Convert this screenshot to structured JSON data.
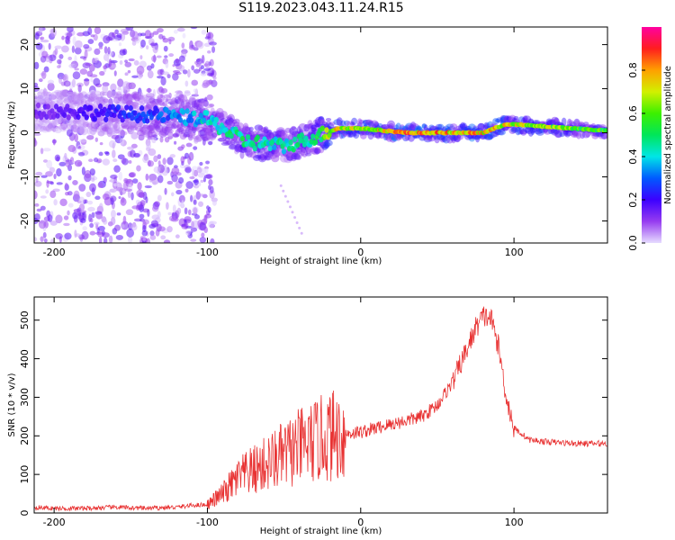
{
  "title": "S119.2023.043.11.24.R15",
  "colors": {
    "snr_line": "#e83232",
    "background": "#ffffff",
    "axes": "#000000"
  },
  "chart_data": [
    {
      "type": "heatmap",
      "title": "",
      "xlabel": "Height of straight line (km)",
      "ylabel": "Frequency (Hz)",
      "xlim": [
        -213,
        161
      ],
      "ylim": [
        -25,
        24
      ],
      "xticks": [
        -200,
        -100,
        0,
        100
      ],
      "yticks": [
        20,
        10,
        0,
        -10,
        -20
      ],
      "colorbar": {
        "label": "Normalized spectral amplitude",
        "range": [
          0,
          1
        ],
        "ticks": [
          "0.0",
          "0.2",
          "0.4",
          "0.6",
          "0.8"
        ],
        "colormap": "rainbow (purple-blue-cyan-green-yellow-red-magenta)"
      },
      "ridge": [
        {
          "x": -200,
          "freq": 5,
          "amp": 0.15
        },
        {
          "x": -130,
          "freq": 4,
          "amp": 0.3
        },
        {
          "x": -100,
          "freq": 3,
          "amp": 0.45
        },
        {
          "x": -75,
          "freq": -2,
          "amp": 0.5
        },
        {
          "x": -50,
          "freq": -3,
          "amp": 0.45
        },
        {
          "x": -30,
          "freq": -1,
          "amp": 0.5
        },
        {
          "x": -15,
          "freq": 1,
          "amp": 0.8
        },
        {
          "x": 0,
          "freq": 1,
          "amp": 0.7
        },
        {
          "x": 30,
          "freq": 0,
          "amp": 0.85
        },
        {
          "x": 80,
          "freq": 0,
          "amp": 0.8
        },
        {
          "x": 95,
          "freq": 2,
          "amp": 0.75
        },
        {
          "x": 160,
          "freq": 0.5,
          "amp": 0.6
        }
      ]
    },
    {
      "type": "line",
      "title": "",
      "xlabel": "Height of straight line (km)",
      "ylabel": "SNR (10 * v/v)",
      "xlim": [
        -213,
        161
      ],
      "ylim": [
        0,
        560
      ],
      "xticks": [
        -200,
        -100,
        0,
        100
      ],
      "yticks": [
        0,
        100,
        200,
        300,
        400,
        500
      ],
      "series": [
        {
          "x": [
            -213,
            -200,
            -180,
            -160,
            -140,
            -120,
            -110,
            -100,
            -90,
            -80,
            -70,
            -60,
            -50,
            -40,
            -30,
            -20,
            -10,
            0,
            10,
            20,
            30,
            40,
            50,
            60,
            70,
            75,
            80,
            85,
            90,
            95,
            100,
            110,
            120,
            140,
            161
          ],
          "y": [
            15,
            12,
            12,
            15,
            12,
            15,
            20,
            22,
            50,
            90,
            110,
            130,
            150,
            170,
            185,
            200,
            205,
            210,
            220,
            230,
            240,
            250,
            280,
            340,
            430,
            480,
            510,
            505,
            430,
            300,
            220,
            190,
            185,
            180,
            180
          ]
        }
      ]
    }
  ]
}
